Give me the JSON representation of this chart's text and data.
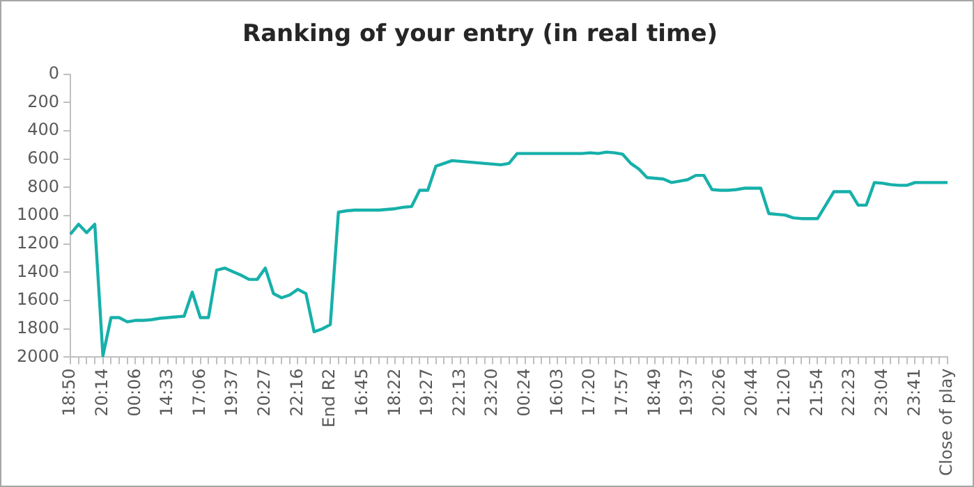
{
  "chart_data": {
    "type": "line",
    "title": "Ranking of your entry (in real time)",
    "categories": [
      "18:50",
      null,
      null,
      null,
      "20:14",
      null,
      null,
      null,
      "00:06",
      null,
      null,
      null,
      "14:33",
      null,
      null,
      null,
      "17:06",
      null,
      null,
      null,
      "19:37",
      null,
      null,
      null,
      "20:27",
      null,
      null,
      null,
      "22:16",
      null,
      null,
      null,
      "End R2",
      null,
      null,
      null,
      "16:45",
      null,
      null,
      null,
      "18:22",
      null,
      null,
      null,
      "19:27",
      null,
      null,
      null,
      "22:13",
      null,
      null,
      null,
      "23:20",
      null,
      null,
      null,
      "00:24",
      null,
      null,
      null,
      "16:03",
      null,
      null,
      null,
      "17:20",
      null,
      null,
      null,
      "17:57",
      null,
      null,
      null,
      "18:49",
      null,
      null,
      null,
      "19:37",
      null,
      null,
      null,
      "20:26",
      null,
      null,
      null,
      "20:44",
      null,
      null,
      null,
      "21:20",
      null,
      null,
      null,
      "21:54",
      null,
      null,
      null,
      "22:23",
      null,
      null,
      null,
      "23:04",
      null,
      null,
      null,
      "23:41",
      null,
      null,
      null,
      "Close of play"
    ],
    "series": [
      {
        "color": "#17b0aa",
        "values": [
          1130,
          1060,
          1120,
          1060,
          1990,
          1720,
          1720,
          1750,
          1740,
          1740,
          1735,
          1725,
          1720,
          1715,
          1710,
          1540,
          1720,
          1720,
          1385,
          1370,
          1395,
          1420,
          1450,
          1450,
          1370,
          1550,
          1580,
          1560,
          1520,
          1550,
          1820,
          1800,
          1770,
          975,
          965,
          960,
          960,
          960,
          960,
          955,
          950,
          940,
          935,
          820,
          820,
          650,
          630,
          610,
          615,
          620,
          625,
          630,
          635,
          640,
          630,
          560,
          560,
          560,
          560,
          560,
          560,
          560,
          560,
          560,
          555,
          560,
          550,
          555,
          565,
          630,
          670,
          730,
          735,
          740,
          765,
          755,
          745,
          715,
          715,
          815,
          820,
          820,
          815,
          805,
          805,
          805,
          985,
          990,
          995,
          1015,
          1020,
          1020,
          1020,
          925,
          830,
          830,
          830,
          925,
          925,
          765,
          770,
          780,
          785,
          785,
          765,
          765,
          765,
          765,
          765
        ]
      }
    ],
    "ylim": [
      2000,
      0
    ],
    "yticks": [
      0,
      200,
      400,
      600,
      800,
      1000,
      1200,
      1400,
      1600,
      1800,
      2000
    ],
    "grid": false,
    "legend": false,
    "marker": "none",
    "line_style": "solid"
  }
}
